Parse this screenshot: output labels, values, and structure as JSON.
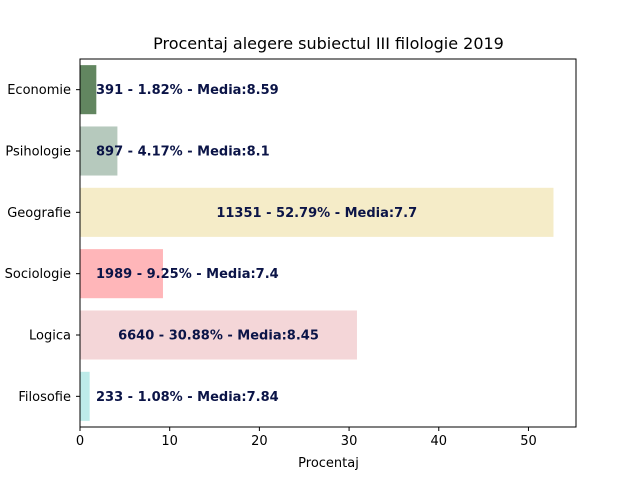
{
  "chart_data": {
    "type": "bar",
    "orientation": "horizontal",
    "title": "Procentaj alegere subiectul III filologie 2019",
    "xlabel": "Procentaj",
    "ylabel": "",
    "xlim": [
      0,
      55.3
    ],
    "x_ticks": [
      "0",
      "10",
      "20",
      "30",
      "40",
      "50"
    ],
    "grid": false,
    "categories": [
      "Filosofie",
      "Logica",
      "Sociologie",
      "Geografie",
      "Psihologie",
      "Economie"
    ],
    "values": [
      1.08,
      30.88,
      9.25,
      52.79,
      4.17,
      1.82
    ],
    "bar_labels": [
      "233 - 1.08% - Media:7.84",
      "6640 - 30.88% - Media:8.45",
      "1989 - 9.25% - Media:7.4",
      "11351 - 52.79% - Media:7.7",
      "897 - 4.17% - Media:8.1",
      "391 - 1.82% - Media:8.59"
    ],
    "bar_colors": [
      "#bdebe9",
      "#f4d6d8",
      "#ffb6b9",
      "#f5ecc8",
      "#b6c9bd",
      "#628660"
    ],
    "label_color": "#0b1447"
  }
}
